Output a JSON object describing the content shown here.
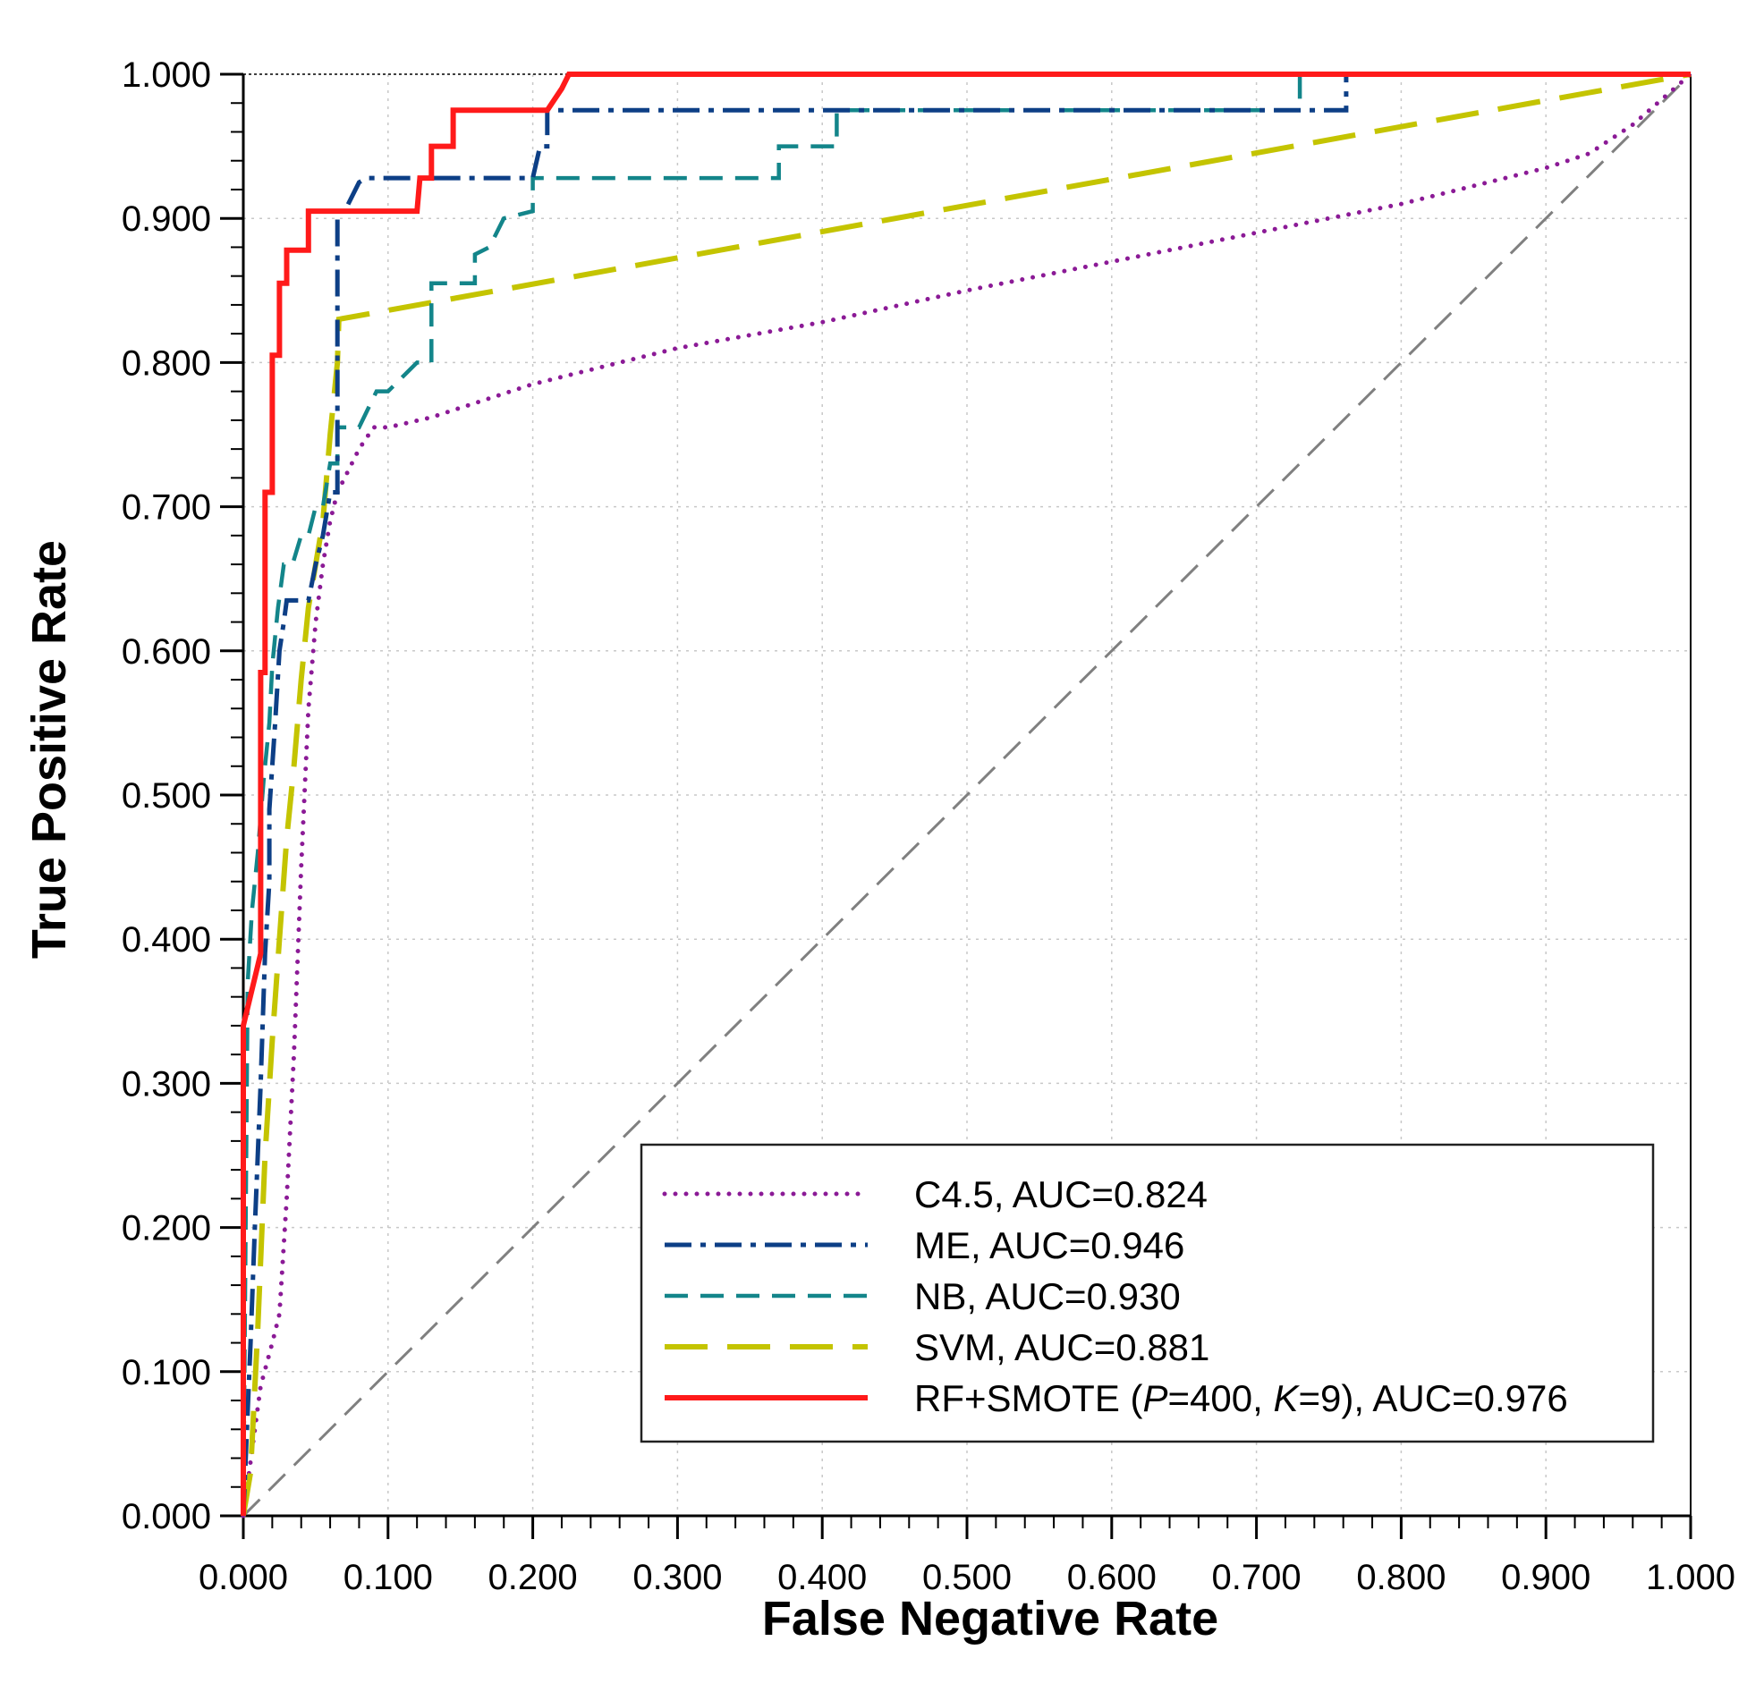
{
  "chart_data": {
    "type": "line",
    "title": "",
    "xlabel": "False Negative Rate",
    "ylabel": "True Positive Rate",
    "xlim": [
      0,
      1
    ],
    "ylim": [
      0,
      1
    ],
    "grid": true,
    "legend_position": "bottom-right",
    "x_ticks": [
      "0.000",
      "0.100",
      "0.200",
      "0.300",
      "0.400",
      "0.500",
      "0.600",
      "0.700",
      "0.800",
      "0.900",
      "1.000"
    ],
    "y_ticks": [
      "0.000",
      "0.100",
      "0.200",
      "0.300",
      "0.400",
      "0.500",
      "0.600",
      "0.700",
      "0.800",
      "0.900",
      "1.000"
    ],
    "colors": {
      "c45": "#8b1a96",
      "me": "#0d3f86",
      "nb": "#13858a",
      "svm": "#c4c400",
      "rf": "#ff1a1a",
      "diagonal": "#808080"
    },
    "series": [
      {
        "id": "c45",
        "name": "C4.5, AUC=0.824",
        "x": [
          0,
          0.012,
          0.02,
          0.025,
          0.03,
          0.035,
          0.04,
          0.045,
          0.05,
          0.055,
          0.06,
          0.065,
          0.07,
          0.075,
          0.08,
          0.09,
          0.1,
          0.13,
          0.2,
          0.3,
          0.4,
          0.5,
          0.6,
          0.7,
          0.8,
          0.9,
          0.93,
          0.96,
          1
        ],
        "y": [
          0,
          0.09,
          0.12,
          0.14,
          0.22,
          0.32,
          0.45,
          0.56,
          0.62,
          0.66,
          0.69,
          0.71,
          0.72,
          0.73,
          0.74,
          0.755,
          0.755,
          0.762,
          0.785,
          0.81,
          0.828,
          0.85,
          0.87,
          0.89,
          0.91,
          0.935,
          0.945,
          0.965,
          1
        ]
      },
      {
        "id": "me",
        "name": "ME, AUC=0.946",
        "x": [
          0,
          0.005,
          0.008,
          0.012,
          0.015,
          0.018,
          0.018,
          0.022,
          0.025,
          0.028,
          0.03,
          0.035,
          0.04,
          0.045,
          0.05,
          0.055,
          0.06,
          0.065,
          0.065,
          0.07,
          0.08,
          0.085,
          0.12,
          0.2,
          0.205,
          0.21,
          0.21,
          0.74,
          0.74,
          0.762,
          0.762
        ],
        "y": [
          0,
          0.12,
          0.2,
          0.3,
          0.39,
          0.44,
          0.49,
          0.55,
          0.6,
          0.62,
          0.635,
          0.635,
          0.635,
          0.635,
          0.66,
          0.68,
          0.71,
          0.71,
          0.905,
          0.905,
          0.925,
          0.928,
          0.928,
          0.928,
          0.95,
          0.95,
          0.975,
          0.975,
          0.975,
          0.975,
          1
        ]
      },
      {
        "id": "nb",
        "name": "NB, AUC=0.930",
        "x": [
          0,
          0.003,
          0.006,
          0.01,
          0.014,
          0.018,
          0.02,
          0.024,
          0.028,
          0.03,
          0.034,
          0.04,
          0.045,
          0.05,
          0.055,
          0.06,
          0.065,
          0.065,
          0.08,
          0.092,
          0.092,
          0.1,
          0.12,
          0.13,
          0.13,
          0.145,
          0.16,
          0.16,
          0.17,
          0.18,
          0.18,
          0.2,
          0.2,
          0.37,
          0.37,
          0.41,
          0.41,
          0.73,
          0.73,
          1
        ],
        "y": [
          0,
          0.37,
          0.42,
          0.46,
          0.51,
          0.55,
          0.59,
          0.63,
          0.66,
          0.66,
          0.66,
          0.68,
          0.68,
          0.7,
          0.7,
          0.73,
          0.73,
          0.755,
          0.755,
          0.78,
          0.78,
          0.78,
          0.8,
          0.8,
          0.855,
          0.855,
          0.855,
          0.875,
          0.88,
          0.9,
          0.9,
          0.905,
          0.928,
          0.928,
          0.95,
          0.95,
          0.975,
          0.975,
          1,
          1
        ]
      },
      {
        "id": "svm",
        "name": "SVM, AUC=0.881",
        "x": [
          0,
          0.005,
          0.01,
          0.015,
          0.02,
          0.025,
          0.03,
          0.035,
          0.04,
          0.045,
          0.05,
          0.055,
          0.06,
          0.065,
          0.066,
          1
        ],
        "y": [
          0,
          0.03,
          0.13,
          0.25,
          0.33,
          0.4,
          0.47,
          0.52,
          0.58,
          0.63,
          0.66,
          0.69,
          0.75,
          0.8,
          0.83,
          1
        ]
      },
      {
        "id": "rf",
        "name": "RF+SMOTE (P=400, K=9), AUC=0.976",
        "x": [
          0,
          0,
          0.012,
          0.012,
          0.015,
          0.015,
          0.02,
          0.02,
          0.025,
          0.025,
          0.03,
          0.03,
          0.035,
          0.035,
          0.045,
          0.045,
          0.05,
          0.12,
          0.122,
          0.13,
          0.13,
          0.135,
          0.145,
          0.145,
          0.15,
          0.21,
          0.22,
          0.225,
          1
        ],
        "y": [
          0,
          0.34,
          0.39,
          0.585,
          0.585,
          0.71,
          0.71,
          0.805,
          0.805,
          0.855,
          0.855,
          0.878,
          0.878,
          0.878,
          0.878,
          0.905,
          0.905,
          0.905,
          0.928,
          0.928,
          0.95,
          0.95,
          0.95,
          0.975,
          0.975,
          0.975,
          0.99,
          1,
          1
        ]
      },
      {
        "id": "diagonal",
        "name": "",
        "x": [
          0,
          1
        ],
        "y": [
          0,
          1
        ]
      }
    ],
    "legend": {
      "entries": [
        {
          "series": "c45",
          "label": "C4.5, AUC=0.824"
        },
        {
          "series": "me",
          "label": "ME, AUC=0.946"
        },
        {
          "series": "nb",
          "label": "NB, AUC=0.930"
        },
        {
          "series": "svm",
          "label": "SVM, AUC=0.881"
        },
        {
          "series": "rf",
          "label_parts": [
            "RF+SMOTE (",
            "P",
            "=400, ",
            "K",
            "=9), AUC=0.976"
          ]
        }
      ]
    }
  }
}
